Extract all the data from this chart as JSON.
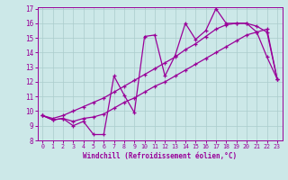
{
  "x": [
    0,
    1,
    2,
    3,
    4,
    5,
    6,
    7,
    8,
    9,
    10,
    11,
    12,
    13,
    14,
    15,
    16,
    17,
    18,
    19,
    20,
    21,
    22,
    23
  ],
  "line1": [
    9.7,
    9.4,
    9.5,
    9.0,
    9.3,
    8.4,
    8.4,
    12.4,
    11.1,
    9.9,
    15.1,
    15.2,
    12.4,
    13.8,
    16.0,
    14.9,
    15.5,
    17.0,
    16.0,
    16.0,
    16.0,
    15.4,
    13.7,
    12.2
  ],
  "line2": [
    9.7,
    9.4,
    9.5,
    9.3,
    9.5,
    9.6,
    9.8,
    10.2,
    10.6,
    10.9,
    11.3,
    11.7,
    12.0,
    12.4,
    12.8,
    13.2,
    13.6,
    14.0,
    14.4,
    14.8,
    15.2,
    15.4,
    15.6,
    12.2
  ],
  "line3": [
    9.7,
    9.5,
    9.7,
    10.0,
    10.3,
    10.6,
    10.9,
    11.3,
    11.7,
    12.1,
    12.5,
    12.9,
    13.3,
    13.7,
    14.2,
    14.6,
    15.1,
    15.6,
    15.9,
    16.0,
    16.0,
    15.8,
    15.4,
    12.2
  ],
  "color": "#990099",
  "bg_color": "#cce8e8",
  "grid_color": "#aacccc",
  "xlabel": "Windchill (Refroidissement éolien,°C)",
  "ylim": [
    8,
    17
  ],
  "xlim": [
    -0.5,
    23.5
  ],
  "yticks": [
    8,
    9,
    10,
    11,
    12,
    13,
    14,
    15,
    16,
    17
  ],
  "xticks": [
    0,
    1,
    2,
    3,
    4,
    5,
    6,
    7,
    8,
    9,
    10,
    11,
    12,
    13,
    14,
    15,
    16,
    17,
    18,
    19,
    20,
    21,
    22,
    23
  ]
}
